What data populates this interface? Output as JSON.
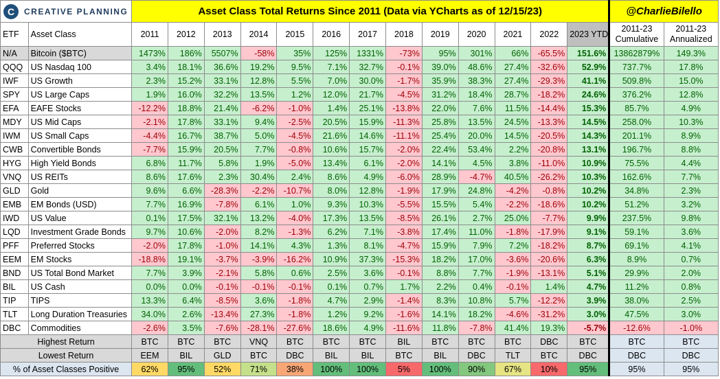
{
  "header": {
    "logo_text": "CREATIVE PLANNING",
    "title": "Asset Class Total Returns Since 2011 (Data via YCharts as of 12/15/23)",
    "handle": "@CharlieBilello"
  },
  "colors": {
    "positive_bg": "#c6efce",
    "positive_text": "#006100",
    "negative_bg": "#ffc7ce",
    "negative_text": "#9c0006",
    "title_bg": "#ffff00",
    "summary_bg": "#dce6f1"
  },
  "chart_data": {
    "type": "table",
    "title": "Asset Class Total Returns Since 2011 (Data via YCharts as of 12/15/23)",
    "column_headers": {
      "etf": "ETF",
      "asset_class": "Asset Class",
      "years": [
        "2011",
        "2012",
        "2013",
        "2014",
        "2015",
        "2016",
        "2017",
        "2018",
        "2019",
        "2020",
        "2021",
        "2022",
        "2023 YTD"
      ],
      "cumulative": "2011-23 Cumulative",
      "annualized": "2011-23 Annualized"
    },
    "rows": [
      {
        "etf": "N/A",
        "name": "Bitcoin ($BTC)",
        "values": [
          "1473%",
          "186%",
          "5507%",
          "-58%",
          "35%",
          "125%",
          "1331%",
          "-73%",
          "95%",
          "301%",
          "66%",
          "-65.5%",
          "151.6%"
        ],
        "cumulative": "13862879%",
        "annualized": "149.3%"
      },
      {
        "etf": "QQQ",
        "name": "US Nasdaq 100",
        "values": [
          "3.4%",
          "18.1%",
          "36.6%",
          "19.2%",
          "9.5%",
          "7.1%",
          "32.7%",
          "-0.1%",
          "39.0%",
          "48.6%",
          "27.4%",
          "-32.6%",
          "52.9%"
        ],
        "cumulative": "737.7%",
        "annualized": "17.8%"
      },
      {
        "etf": "IWF",
        "name": "US Growth",
        "values": [
          "2.3%",
          "15.2%",
          "33.1%",
          "12.8%",
          "5.5%",
          "7.0%",
          "30.0%",
          "-1.7%",
          "35.9%",
          "38.3%",
          "27.4%",
          "-29.3%",
          "41.1%"
        ],
        "cumulative": "509.8%",
        "annualized": "15.0%"
      },
      {
        "etf": "SPY",
        "name": "US Large Caps",
        "values": [
          "1.9%",
          "16.0%",
          "32.2%",
          "13.5%",
          "1.2%",
          "12.0%",
          "21.7%",
          "-4.5%",
          "31.2%",
          "18.4%",
          "28.7%",
          "-18.2%",
          "24.6%"
        ],
        "cumulative": "376.2%",
        "annualized": "12.8%"
      },
      {
        "etf": "EFA",
        "name": "EAFE Stocks",
        "values": [
          "-12.2%",
          "18.8%",
          "21.4%",
          "-6.2%",
          "-1.0%",
          "1.4%",
          "25.1%",
          "-13.8%",
          "22.0%",
          "7.6%",
          "11.5%",
          "-14.4%",
          "15.3%"
        ],
        "cumulative": "85.7%",
        "annualized": "4.9%"
      },
      {
        "etf": "MDY",
        "name": "US Mid Caps",
        "values": [
          "-2.1%",
          "17.8%",
          "33.1%",
          "9.4%",
          "-2.5%",
          "20.5%",
          "15.9%",
          "-11.3%",
          "25.8%",
          "13.5%",
          "24.5%",
          "-13.3%",
          "14.5%"
        ],
        "cumulative": "258.0%",
        "annualized": "10.3%"
      },
      {
        "etf": "IWM",
        "name": "US Small Caps",
        "values": [
          "-4.4%",
          "16.7%",
          "38.7%",
          "5.0%",
          "-4.5%",
          "21.6%",
          "14.6%",
          "-11.1%",
          "25.4%",
          "20.0%",
          "14.5%",
          "-20.5%",
          "14.3%"
        ],
        "cumulative": "201.1%",
        "annualized": "8.9%"
      },
      {
        "etf": "CWB",
        "name": "Convertible Bonds",
        "values": [
          "-7.7%",
          "15.9%",
          "20.5%",
          "7.7%",
          "-0.8%",
          "10.6%",
          "15.7%",
          "-2.0%",
          "22.4%",
          "53.4%",
          "2.2%",
          "-20.8%",
          "13.1%"
        ],
        "cumulative": "196.7%",
        "annualized": "8.8%"
      },
      {
        "etf": "HYG",
        "name": "High Yield Bonds",
        "values": [
          "6.8%",
          "11.7%",
          "5.8%",
          "1.9%",
          "-5.0%",
          "13.4%",
          "6.1%",
          "-2.0%",
          "14.1%",
          "4.5%",
          "3.8%",
          "-11.0%",
          "10.9%"
        ],
        "cumulative": "75.5%",
        "annualized": "4.4%"
      },
      {
        "etf": "VNQ",
        "name": "US REITs",
        "values": [
          "8.6%",
          "17.6%",
          "2.3%",
          "30.4%",
          "2.4%",
          "8.6%",
          "4.9%",
          "-6.0%",
          "28.9%",
          "-4.7%",
          "40.5%",
          "-26.2%",
          "10.3%"
        ],
        "cumulative": "162.6%",
        "annualized": "7.7%"
      },
      {
        "etf": "GLD",
        "name": "Gold",
        "values": [
          "9.6%",
          "6.6%",
          "-28.3%",
          "-2.2%",
          "-10.7%",
          "8.0%",
          "12.8%",
          "-1.9%",
          "17.9%",
          "24.8%",
          "-4.2%",
          "-0.8%",
          "10.2%"
        ],
        "cumulative": "34.8%",
        "annualized": "2.3%"
      },
      {
        "etf": "EMB",
        "name": "EM Bonds (USD)",
        "values": [
          "7.7%",
          "16.9%",
          "-7.8%",
          "6.1%",
          "1.0%",
          "9.3%",
          "10.3%",
          "-5.5%",
          "15.5%",
          "5.4%",
          "-2.2%",
          "-18.6%",
          "10.2%"
        ],
        "cumulative": "51.2%",
        "annualized": "3.2%"
      },
      {
        "etf": "IWD",
        "name": "US Value",
        "values": [
          "0.1%",
          "17.5%",
          "32.1%",
          "13.2%",
          "-4.0%",
          "17.3%",
          "13.5%",
          "-8.5%",
          "26.1%",
          "2.7%",
          "25.0%",
          "-7.7%",
          "9.9%"
        ],
        "cumulative": "237.5%",
        "annualized": "9.8%"
      },
      {
        "etf": "LQD",
        "name": "Investment Grade Bonds",
        "values": [
          "9.7%",
          "10.6%",
          "-2.0%",
          "8.2%",
          "-1.3%",
          "6.2%",
          "7.1%",
          "-3.8%",
          "17.4%",
          "11.0%",
          "-1.8%",
          "-17.9%",
          "9.1%"
        ],
        "cumulative": "59.1%",
        "annualized": "3.6%"
      },
      {
        "etf": "PFF",
        "name": "Preferred Stocks",
        "values": [
          "-2.0%",
          "17.8%",
          "-1.0%",
          "14.1%",
          "4.3%",
          "1.3%",
          "8.1%",
          "-4.7%",
          "15.9%",
          "7.9%",
          "7.2%",
          "-18.2%",
          "8.7%"
        ],
        "cumulative": "69.1%",
        "annualized": "4.1%"
      },
      {
        "etf": "EEM",
        "name": "EM Stocks",
        "values": [
          "-18.8%",
          "19.1%",
          "-3.7%",
          "-3.9%",
          "-16.2%",
          "10.9%",
          "37.3%",
          "-15.3%",
          "18.2%",
          "17.0%",
          "-3.6%",
          "-20.6%",
          "6.3%"
        ],
        "cumulative": "8.9%",
        "annualized": "0.7%"
      },
      {
        "etf": "BND",
        "name": "US Total Bond Market",
        "values": [
          "7.7%",
          "3.9%",
          "-2.1%",
          "5.8%",
          "0.6%",
          "2.5%",
          "3.6%",
          "-0.1%",
          "8.8%",
          "7.7%",
          "-1.9%",
          "-13.1%",
          "5.1%"
        ],
        "cumulative": "29.9%",
        "annualized": "2.0%"
      },
      {
        "etf": "BIL",
        "name": "US Cash",
        "values": [
          "0.0%",
          "0.0%",
          "-0.1%",
          "-0.1%",
          "-0.1%",
          "0.1%",
          "0.7%",
          "1.7%",
          "2.2%",
          "0.4%",
          "-0.1%",
          "1.4%",
          "4.7%"
        ],
        "cumulative": "11.2%",
        "annualized": "0.8%"
      },
      {
        "etf": "TIP",
        "name": "TIPS",
        "values": [
          "13.3%",
          "6.4%",
          "-8.5%",
          "3.6%",
          "-1.8%",
          "4.7%",
          "2.9%",
          "-1.4%",
          "8.3%",
          "10.8%",
          "5.7%",
          "-12.2%",
          "3.9%"
        ],
        "cumulative": "38.0%",
        "annualized": "2.5%"
      },
      {
        "etf": "TLT",
        "name": "Long Duration Treasuries",
        "values": [
          "34.0%",
          "2.6%",
          "-13.4%",
          "27.3%",
          "-1.8%",
          "1.2%",
          "9.2%",
          "-1.6%",
          "14.1%",
          "18.2%",
          "-4.6%",
          "-31.2%",
          "3.0%"
        ],
        "cumulative": "47.5%",
        "annualized": "3.0%"
      },
      {
        "etf": "DBC",
        "name": "Commodities",
        "values": [
          "-2.6%",
          "3.5%",
          "-7.6%",
          "-28.1%",
          "-27.6%",
          "18.6%",
          "4.9%",
          "-11.6%",
          "11.8%",
          "-7.8%",
          "41.4%",
          "19.3%",
          "-5.7%"
        ],
        "cumulative": "-12.6%",
        "annualized": "-1.0%"
      }
    ],
    "summary": [
      {
        "label": "Highest Return",
        "values": [
          "BTC",
          "BTC",
          "BTC",
          "VNQ",
          "BTC",
          "BTC",
          "BTC",
          "BIL",
          "BTC",
          "BTC",
          "BTC",
          "DBC",
          "BTC",
          "BTC",
          "BTC"
        ]
      },
      {
        "label": "Lowest Return",
        "values": [
          "EEM",
          "BIL",
          "GLD",
          "BTC",
          "DBC",
          "BIL",
          "BIL",
          "BTC",
          "BIL",
          "DBC",
          "TLT",
          "BTC",
          "DBC",
          "DBC",
          "DBC"
        ]
      },
      {
        "label": "% of Asset Classes Positive",
        "values": [
          "62%",
          "95%",
          "52%",
          "71%",
          "38%",
          "100%",
          "100%",
          "5%",
          "100%",
          "90%",
          "67%",
          "10%",
          "95%",
          "95%",
          "95%"
        ],
        "colors": [
          "#ffd966",
          "#63be7b",
          "#ffd966",
          "#c5e08b",
          "#f8a676",
          "#63be7b",
          "#63be7b",
          "#f8696b",
          "#63be7b",
          "#84c77e",
          "#e6e483",
          "#f8696b",
          "#63be7b",
          "#dce6f1",
          "#dce6f1"
        ]
      }
    ]
  }
}
